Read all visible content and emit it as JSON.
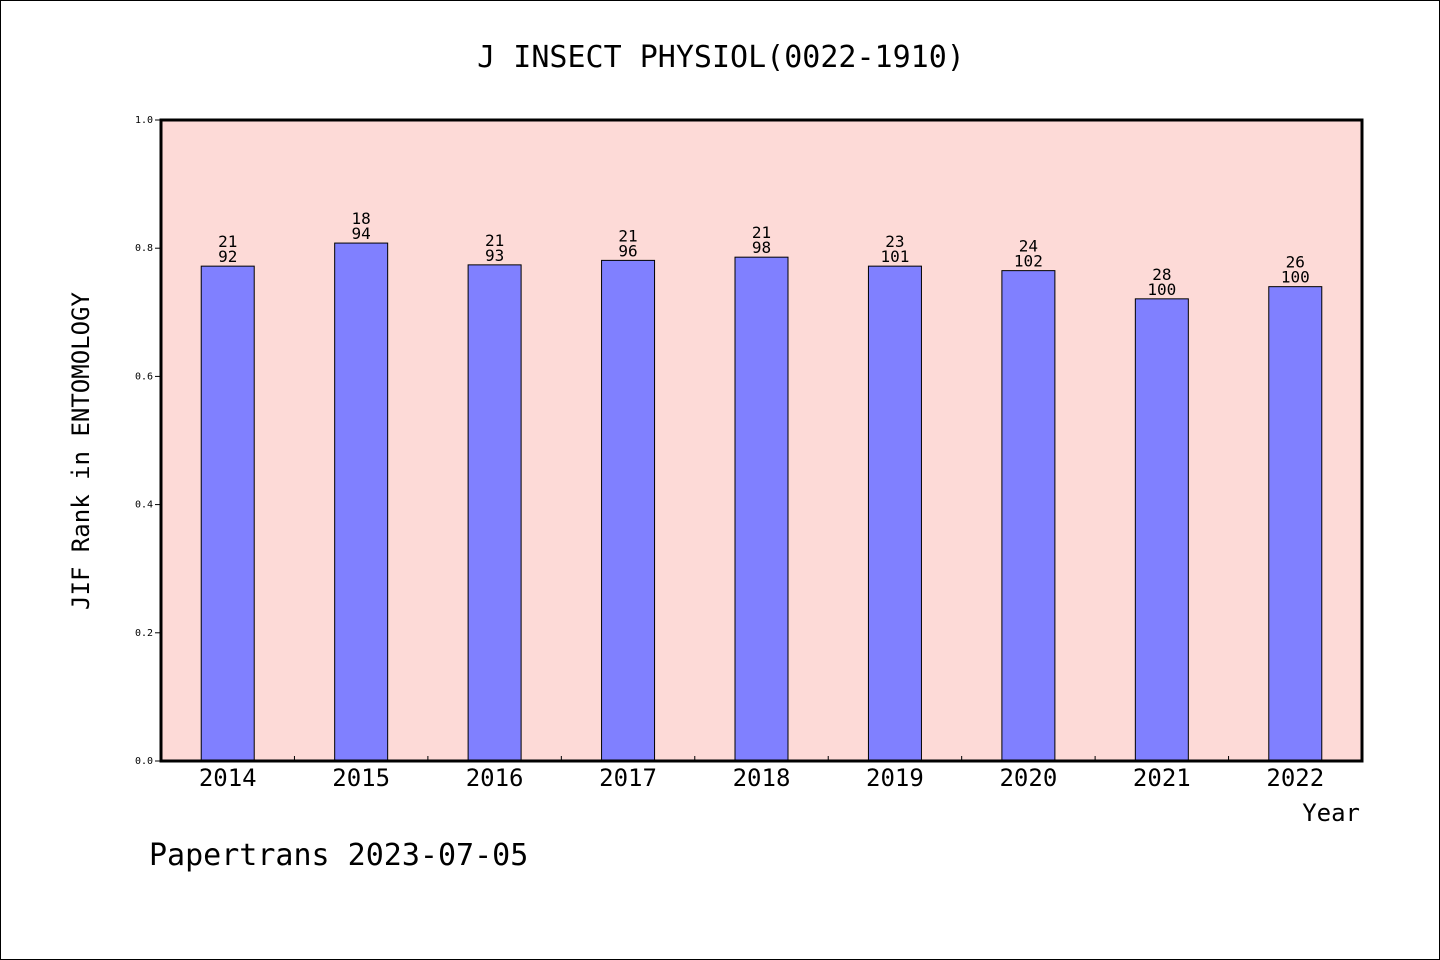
{
  "chart_data": {
    "type": "bar",
    "title": "J INSECT PHYSIOL(0022-1910)",
    "xlabel": "Year",
    "ylabel": "JIF Rank in ENTOMOLOGY",
    "ylim": [
      0,
      1.0
    ],
    "yticks": [
      "0.0",
      "0.2",
      "0.4",
      "0.6",
      "0.8",
      "1.0"
    ],
    "categories": [
      "2014",
      "2015",
      "2016",
      "2017",
      "2018",
      "2019",
      "2020",
      "2021",
      "2022"
    ],
    "values": [
      0.772,
      0.808,
      0.774,
      0.781,
      0.786,
      0.772,
      0.765,
      0.721,
      0.74
    ],
    "rank_labels": [
      "21",
      "18",
      "21",
      "21",
      "21",
      "23",
      "24",
      "28",
      "26"
    ],
    "total_labels": [
      "92",
      "94",
      "93",
      "96",
      "98",
      "101",
      "102",
      "100",
      "100"
    ],
    "footer": "Papertrans 2023-07-05",
    "colors": {
      "plot_background": "#fddad7",
      "bar_fill": "#8080ff",
      "bar_stroke": "#000000"
    },
    "grid": false,
    "legend": "none"
  }
}
